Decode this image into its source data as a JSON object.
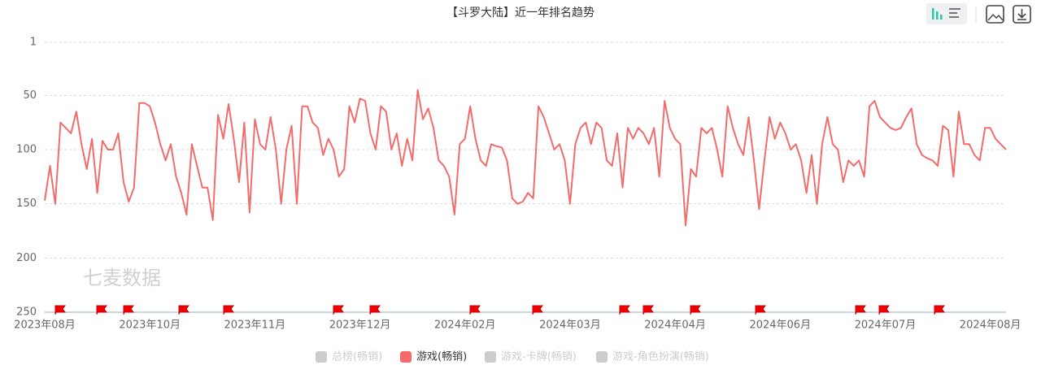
{
  "chart_data": {
    "type": "line",
    "title": "【斗罗大陆】近一年排名趋势",
    "watermark": "七麦数据",
    "categories": [
      "2023年08月",
      null,
      null,
      null,
      null,
      null,
      null,
      null,
      null,
      null,
      null,
      null,
      null,
      null,
      null,
      null,
      null,
      null,
      null,
      null,
      "2023年10月",
      null,
      null,
      null,
      null,
      null,
      null,
      null,
      null,
      null,
      null,
      null,
      null,
      null,
      null,
      null,
      null,
      null,
      null,
      null,
      "2023年11月",
      null,
      null,
      null,
      null,
      null,
      null,
      null,
      null,
      null,
      null,
      null,
      null,
      null,
      null,
      null,
      null,
      null,
      null,
      null,
      "2023年12月",
      null,
      null,
      null,
      null,
      null,
      null,
      null,
      null,
      null,
      null,
      null,
      null,
      null,
      null,
      null,
      null,
      null,
      null,
      null,
      "2024年02月",
      null,
      null,
      null,
      null,
      null,
      null,
      null,
      null,
      null,
      null,
      null,
      null,
      null,
      null,
      null,
      null,
      null,
      null,
      null,
      "2024年03月",
      null,
      null,
      null,
      null,
      null,
      null,
      null,
      null,
      null,
      null,
      null,
      null,
      null,
      null,
      null,
      null,
      null,
      null,
      null,
      "2024年04月",
      null,
      null,
      null,
      null,
      null,
      null,
      null,
      null,
      null,
      null,
      null,
      null,
      null,
      null,
      null,
      null,
      null,
      null,
      null,
      "2024年06月",
      null,
      null,
      null,
      null,
      null,
      null,
      null,
      null,
      null,
      null,
      null,
      null,
      null,
      null,
      null,
      null,
      null,
      null,
      null,
      "2024年07月",
      null,
      null,
      null,
      null,
      null,
      null,
      null,
      null,
      null,
      null,
      null,
      null,
      null,
      null,
      null,
      null,
      null,
      null,
      null,
      "2024年08月",
      null,
      null,
      null
    ],
    "series": [
      {
        "name": "总榜(畅销)",
        "color": "#cccccc",
        "visible": false
      },
      {
        "name": "游戏(畅销)",
        "color": "#f36c6c",
        "visible": true,
        "values": [
          147,
          115,
          150,
          75,
          80,
          85,
          65,
          95,
          118,
          90,
          140,
          92,
          100,
          100,
          85,
          130,
          148,
          135,
          57,
          57,
          60,
          75,
          95,
          110,
          95,
          125,
          140,
          160,
          95,
          115,
          135,
          135,
          165,
          68,
          90,
          58,
          90,
          130,
          75,
          158,
          72,
          95,
          100,
          70,
          100,
          150,
          100,
          78,
          150,
          60,
          60,
          75,
          80,
          105,
          90,
          100,
          125,
          118,
          60,
          75,
          53,
          55,
          85,
          100,
          60,
          65,
          100,
          85,
          115,
          90,
          110,
          45,
          72,
          62,
          80,
          110,
          115,
          125,
          160,
          95,
          90,
          60,
          90,
          110,
          115,
          95,
          97,
          98,
          110,
          145,
          150,
          148,
          140,
          145,
          60,
          70,
          85,
          100,
          95,
          110,
          150,
          95,
          80,
          75,
          95,
          75,
          80,
          110,
          115,
          85,
          135,
          80,
          90,
          80,
          85,
          95,
          80,
          125,
          55,
          80,
          90,
          95,
          170,
          118,
          125,
          80,
          85,
          80,
          100,
          125,
          60,
          80,
          95,
          105,
          70,
          110,
          155,
          110,
          70,
          90,
          75,
          85,
          100,
          95,
          110,
          140,
          105,
          150,
          95,
          70,
          95,
          100,
          130,
          110,
          115,
          110,
          125,
          60,
          55,
          70,
          75,
          80,
          82,
          80,
          70,
          62,
          95,
          105,
          108,
          110,
          115,
          78,
          82,
          125,
          65,
          95,
          95,
          105,
          110,
          80,
          80,
          90,
          95,
          100
        ]
      },
      {
        "name": "游戏-卡牌(畅销)",
        "color": "#cccccc",
        "visible": false
      },
      {
        "name": "游戏-角色扮演(畅销)",
        "color": "#cccccc",
        "visible": false
      }
    ],
    "ylim": [
      1,
      250
    ],
    "y_inverted": true,
    "yticks": [
      1,
      50,
      100,
      150,
      200,
      250
    ],
    "grid": true
  }
}
